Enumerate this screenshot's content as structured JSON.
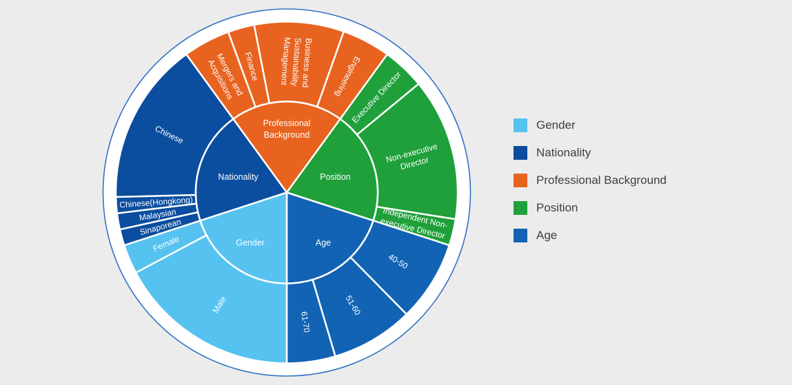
{
  "style": {
    "background": "#ECECEC",
    "outline_circle_color": "#3073C4",
    "wedge_border_color": "#FFFFFF",
    "wedge_label_color": "#FFFFFF",
    "legend_text_color": "#3E3E3E"
  },
  "chart_data": {
    "type": "sunburst",
    "value_unit": "arc degrees (estimated from image; spans proportional to share, each category totals 72)",
    "layout": {
      "start_angle_deg": 126,
      "direction": "clockwise",
      "category_span_deg": 72,
      "inner_ring": [
        0,
        132
      ],
      "outer_ring": [
        132,
        248
      ],
      "outline_circle_radius": 266.5,
      "legend_position": "right"
    },
    "categories": [
      {
        "name": "Professional Background",
        "color": "#E8631F",
        "label_lines": [
          "Professional",
          "Background"
        ],
        "label_reading": "inward",
        "children": [
          {
            "name": "Mergers and Acquisitions",
            "angle_deg": 16,
            "label_lines": [
              "Mergers and",
              "Acquisitions"
            ]
          },
          {
            "name": "Finance",
            "angle_deg": 9,
            "label_lines": [
              "Finance"
            ]
          },
          {
            "name": "Business and Sustainability Management",
            "angle_deg": 30.5,
            "label_lines": [
              "Business and",
              "Sustainability",
              "Management"
            ]
          },
          {
            "name": "Engineering",
            "angle_deg": 16.5,
            "label_lines": [
              "Engineering"
            ]
          }
        ]
      },
      {
        "name": "Position",
        "color": "#1FA03A",
        "label_lines": [
          "Position"
        ],
        "label_reading": "outward",
        "children": [
          {
            "name": "Executive Director",
            "angle_deg": 14.5,
            "label_lines": [
              "Executive Director"
            ]
          },
          {
            "name": "Non-executive Director",
            "angle_deg": 48.5,
            "label_lines": [
              "Non-executive",
              "Director"
            ]
          },
          {
            "name": "Independent Non-executive Director",
            "angle_deg": 9,
            "label_lines": [
              "Independent Non-",
              "executive Director"
            ]
          }
        ]
      },
      {
        "name": "Age",
        "color": "#1263B4",
        "label_lines": [
          "Age"
        ],
        "label_reading": "outward",
        "children": [
          {
            "name": "40-50",
            "angle_deg": 27.5,
            "label_lines": [
              "40-50"
            ]
          },
          {
            "name": "51-60",
            "angle_deg": 28,
            "label_lines": [
              "51-60"
            ]
          },
          {
            "name": "61-70",
            "angle_deg": 16.5,
            "label_lines": [
              "61-70"
            ]
          }
        ]
      },
      {
        "name": "Gender",
        "color": "#56C2F0",
        "label_lines": [
          "Gender"
        ],
        "label_reading": "inward",
        "children": [
          {
            "name": "Male",
            "angle_deg": 62,
            "label_lines": [
              "Male"
            ]
          },
          {
            "name": "Female",
            "angle_deg": 10,
            "label_lines": [
              "Female"
            ]
          }
        ]
      },
      {
        "name": "Nationality",
        "color": "#0B4D9E",
        "label_lines": [
          "Nationality"
        ],
        "label_reading": "inward",
        "children": [
          {
            "name": "Sinaporean",
            "angle_deg": 5.5,
            "label_lines": [
              "Sinaporean"
            ]
          },
          {
            "name": "Malaysian",
            "angle_deg": 5.5,
            "label_lines": [
              "Malaysian"
            ]
          },
          {
            "name": "Chinese(Hongkong)",
            "angle_deg": 5.5,
            "label_lines": [
              "Chinese(Hongkong)"
            ]
          },
          {
            "name": "Chinese",
            "angle_deg": 55.5,
            "label_lines": [
              "Chinese"
            ]
          }
        ]
      }
    ],
    "legend": {
      "position": "right",
      "items": [
        {
          "label": "Gender",
          "color": "#56C2F0"
        },
        {
          "label": "Nationality",
          "color": "#0B4D9E"
        },
        {
          "label": "Professional Background",
          "color": "#E8631F"
        },
        {
          "label": "Position",
          "color": "#1FA03A"
        },
        {
          "label": "Age",
          "color": "#1263B4"
        }
      ]
    }
  }
}
